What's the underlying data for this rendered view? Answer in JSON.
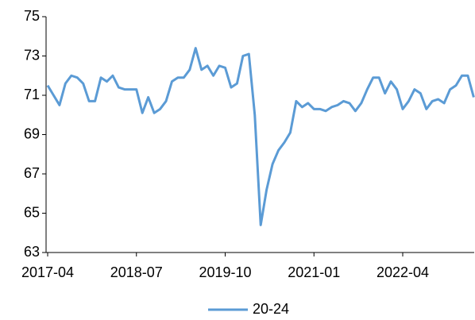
{
  "chart_data": {
    "type": "line",
    "categories": [
      "2017-04",
      null,
      null,
      null,
      null,
      null,
      null,
      null,
      null,
      null,
      null,
      null,
      null,
      null,
      null,
      "2018-07",
      null,
      null,
      null,
      null,
      null,
      null,
      null,
      null,
      null,
      null,
      null,
      null,
      null,
      null,
      "2019-10",
      null,
      null,
      null,
      null,
      null,
      null,
      null,
      null,
      null,
      null,
      null,
      null,
      null,
      null,
      "2021-01",
      null,
      null,
      null,
      null,
      null,
      null,
      null,
      null,
      null,
      null,
      null,
      null,
      null,
      null,
      "2022-04",
      null,
      null,
      null,
      null,
      null,
      null,
      null,
      null,
      null,
      null,
      null,
      null
    ],
    "series": [
      {
        "name": "20-24",
        "color": "#5b9bd5",
        "values": [
          71.5,
          71.0,
          70.5,
          71.6,
          72.0,
          71.9,
          71.6,
          70.7,
          70.7,
          71.9,
          71.7,
          72.0,
          71.4,
          71.3,
          71.3,
          71.3,
          70.1,
          70.9,
          70.1,
          70.3,
          70.7,
          71.7,
          71.9,
          71.9,
          72.3,
          73.4,
          72.3,
          72.5,
          72.0,
          72.5,
          72.4,
          71.4,
          71.6,
          73.0,
          73.1,
          70.0,
          64.4,
          66.2,
          67.5,
          68.2,
          68.6,
          69.1,
          70.7,
          70.4,
          70.6,
          70.3,
          70.3,
          70.2,
          70.4,
          70.5,
          70.7,
          70.6,
          70.2,
          70.6,
          71.3,
          71.9,
          71.9,
          71.1,
          71.7,
          71.3,
          70.3,
          70.7,
          71.3,
          71.1,
          70.3,
          70.7,
          70.8,
          70.6,
          71.3,
          71.5,
          72.0,
          72.0,
          70.9
        ]
      }
    ],
    "ylim": [
      63,
      75
    ],
    "yticks": [
      63,
      65,
      67,
      69,
      71,
      73,
      75
    ],
    "grid": false,
    "legend": "bottom"
  }
}
